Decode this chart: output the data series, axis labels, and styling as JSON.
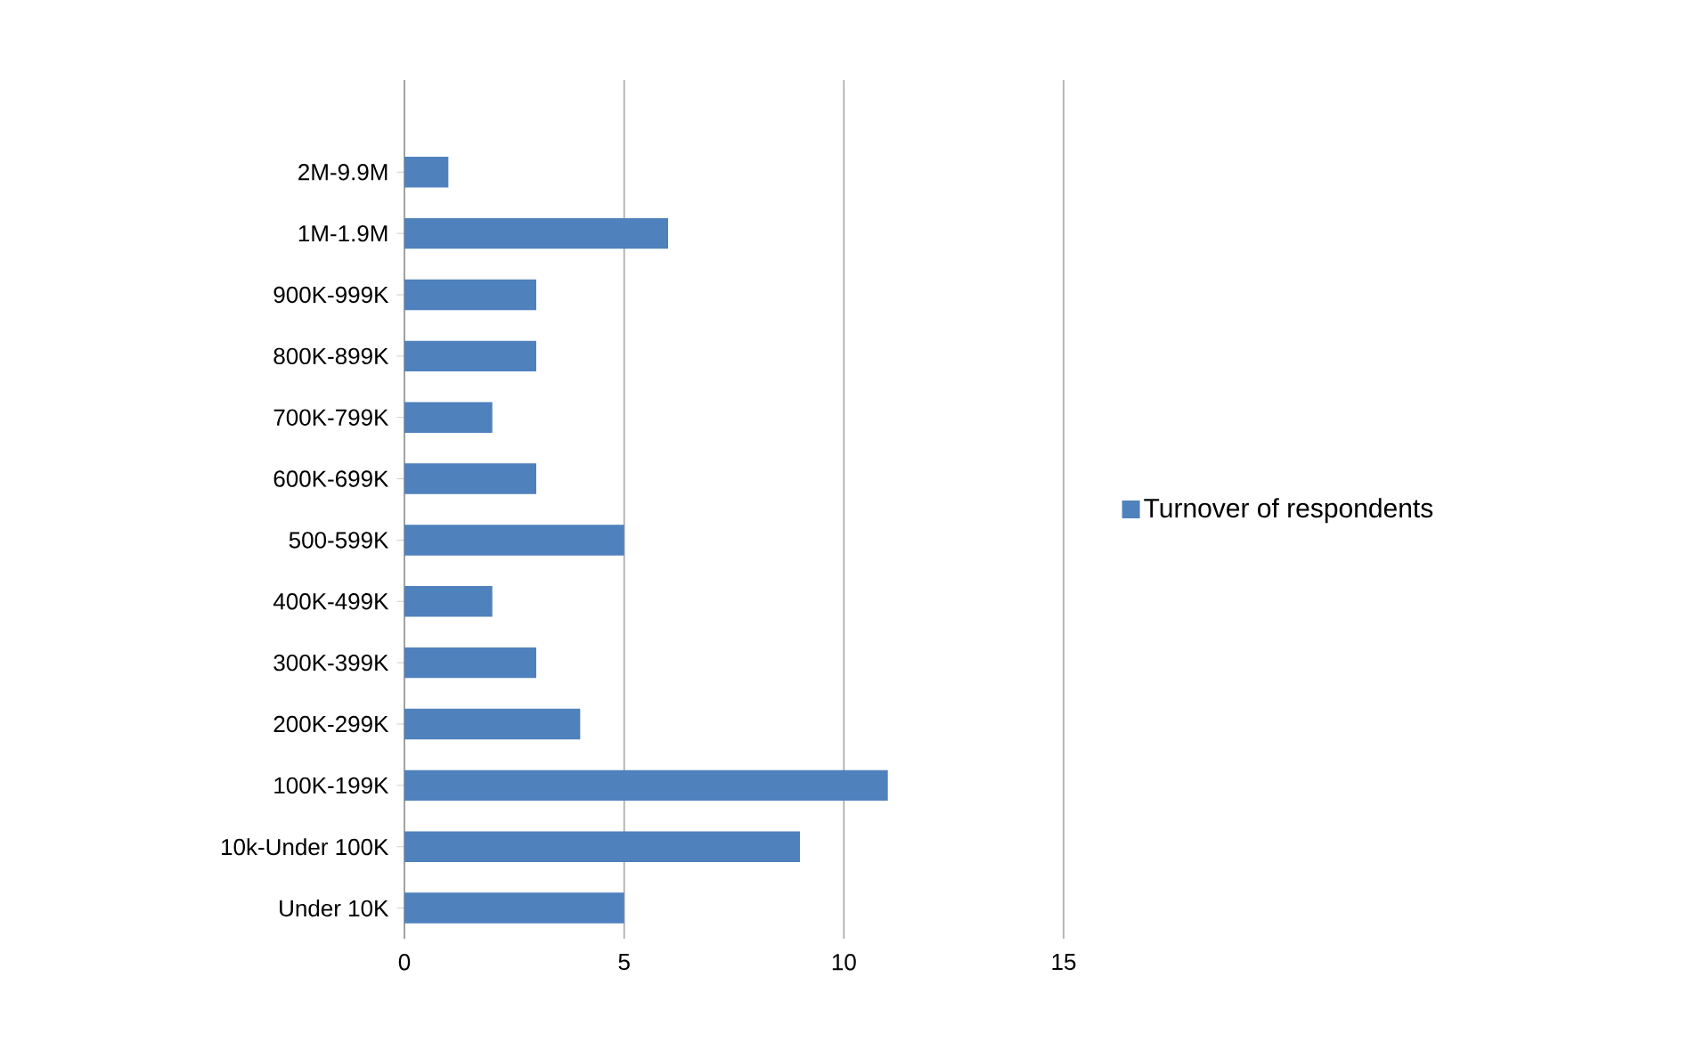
{
  "chart_data": {
    "type": "bar",
    "orientation": "horizontal",
    "categories": [
      "2M-9.9M",
      "1M-1.9M",
      "900K-999K",
      "800K-899K",
      "700K-799K",
      "600K-699K",
      "500-599K",
      "400K-499K",
      "300K-399K",
      "200K-299K",
      "100K-199K",
      "10k-Under 100K",
      "Under 10K"
    ],
    "series": [
      {
        "name": "Turnover of respondents",
        "color": "#4f81bd",
        "values": [
          1,
          6,
          3,
          3,
          2,
          3,
          5,
          2,
          3,
          4,
          11,
          9,
          5
        ]
      }
    ],
    "xlim": [
      0,
      15
    ],
    "xticks": [
      0,
      5,
      10,
      15
    ],
    "grid": "x",
    "legend": "right"
  }
}
